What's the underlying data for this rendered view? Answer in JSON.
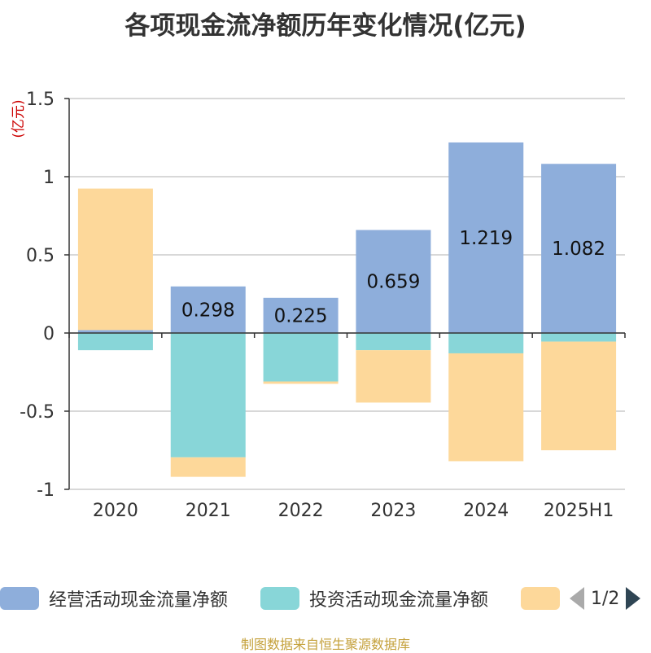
{
  "chart_data": {
    "type": "bar",
    "stacked": true,
    "title": "各项现金流净额历年变化情况(亿元)",
    "ylabel": "(亿元)",
    "categories": [
      "2020",
      "2021",
      "2022",
      "2023",
      "2024",
      "2025H1"
    ],
    "ylim": [
      -1,
      1.5
    ],
    "yticks": [
      -1,
      -0.5,
      0,
      0.5,
      1,
      1.5
    ],
    "ytick_labels": [
      "-1",
      "-0.5",
      "0",
      "0.5",
      "1",
      "1.5"
    ],
    "grid": true,
    "legend_position": "bottom",
    "series": [
      {
        "name": "经营活动现金流量净额",
        "color": "#8eaedb",
        "values": [
          0.019,
          0.298,
          0.225,
          0.659,
          1.219,
          1.082
        ],
        "labels": [
          "",
          "0.298",
          "0.225",
          "0.659",
          "1.219",
          "1.082"
        ]
      },
      {
        "name": "投资活动现金流量净额",
        "color": "#88d6d8",
        "values": [
          -0.11,
          -0.795,
          -0.31,
          -0.11,
          -0.13,
          -0.055
        ]
      },
      {
        "name": "",
        "color": "#fdd89a",
        "values": [
          0.905,
          -0.125,
          -0.015,
          -0.335,
          -0.69,
          -0.695
        ]
      }
    ]
  },
  "legend": {
    "items": [
      {
        "label": "经营活动现金流量净额",
        "color": "#8eaedb"
      },
      {
        "label": "投资活动现金流量净额",
        "color": "#88d6d8"
      },
      {
        "label": "",
        "color": "#fdd89a"
      }
    ],
    "page": "1/2",
    "prev_icon": "triangle-left-icon",
    "next_icon": "triangle-right-icon"
  },
  "source": "制图数据来自恒生聚源数据库"
}
